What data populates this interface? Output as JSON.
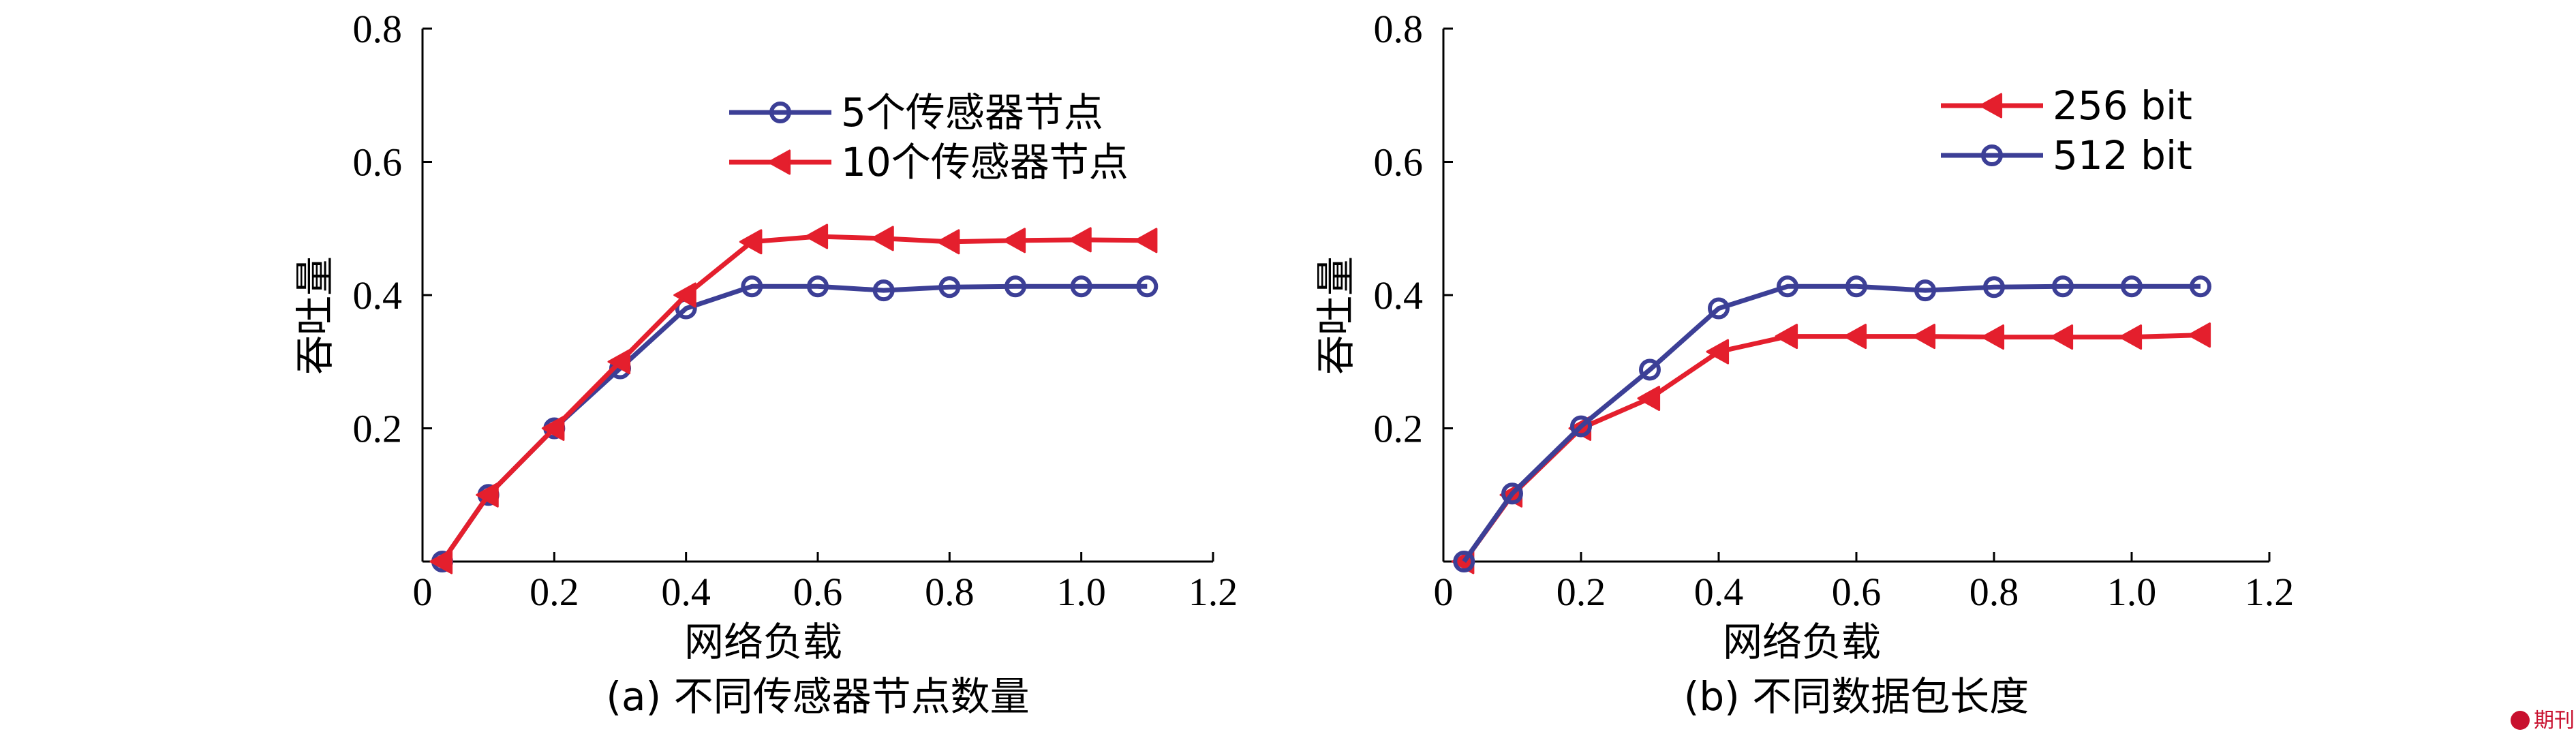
{
  "watermark": "期刊网",
  "chart_data": [
    {
      "type": "line",
      "id": "a",
      "caption": "(a) 不同传感器节点数量",
      "xlabel": "网络负载",
      "ylabel": "吞吐量",
      "xlim": [
        0,
        1.2
      ],
      "ylim": [
        0,
        0.8
      ],
      "xticks": [
        "0",
        "0.2",
        "0.4",
        "0.6",
        "0.8",
        "1.0",
        "1.2"
      ],
      "yticks": [
        "0.2",
        "0.4",
        "0.6",
        "0.8"
      ],
      "legend_position": "top-right",
      "series": [
        {
          "name": "5个传感器节点",
          "color": "#3c3f96",
          "marker": "circle",
          "x": [
            0.03,
            0.1,
            0.2,
            0.3,
            0.4,
            0.5,
            0.6,
            0.7,
            0.8,
            0.9,
            1.0,
            1.1
          ],
          "y": [
            0.0,
            0.1,
            0.2,
            0.29,
            0.38,
            0.413,
            0.413,
            0.407,
            0.412,
            0.413,
            0.413,
            0.413
          ]
        },
        {
          "name": "10个传感器节点",
          "color": "#e41f2d",
          "marker": "triangle-left",
          "x": [
            0.03,
            0.1,
            0.2,
            0.3,
            0.4,
            0.5,
            0.6,
            0.7,
            0.8,
            0.9,
            1.0,
            1.1
          ],
          "y": [
            0.0,
            0.1,
            0.2,
            0.3,
            0.4,
            0.48,
            0.488,
            0.485,
            0.48,
            0.482,
            0.483,
            0.482
          ]
        }
      ]
    },
    {
      "type": "line",
      "id": "b",
      "caption": "(b) 不同数据包长度",
      "xlabel": "网络负载",
      "ylabel": "吞吐量",
      "xlim": [
        0,
        1.2
      ],
      "ylim": [
        0,
        0.8
      ],
      "xticks": [
        "0",
        "0.2",
        "0.4",
        "0.6",
        "0.8",
        "1.0",
        "1.2"
      ],
      "yticks": [
        "0.2",
        "0.4",
        "0.6",
        "0.8"
      ],
      "legend_position": "top-right",
      "series": [
        {
          "name": "256 bit",
          "color": "#e41f2d",
          "marker": "triangle-left",
          "x": [
            0.03,
            0.1,
            0.2,
            0.3,
            0.4,
            0.5,
            0.6,
            0.7,
            0.8,
            0.9,
            1.0,
            1.1
          ],
          "y": [
            0.0,
            0.1,
            0.2,
            0.245,
            0.315,
            0.338,
            0.338,
            0.338,
            0.337,
            0.337,
            0.337,
            0.34
          ]
        },
        {
          "name": "512 bit",
          "color": "#3c3f96",
          "marker": "circle",
          "x": [
            0.03,
            0.1,
            0.2,
            0.3,
            0.4,
            0.5,
            0.6,
            0.7,
            0.8,
            0.9,
            1.0,
            1.1
          ],
          "y": [
            0.0,
            0.102,
            0.203,
            0.288,
            0.38,
            0.413,
            0.413,
            0.407,
            0.412,
            0.413,
            0.413,
            0.413
          ]
        }
      ]
    }
  ]
}
